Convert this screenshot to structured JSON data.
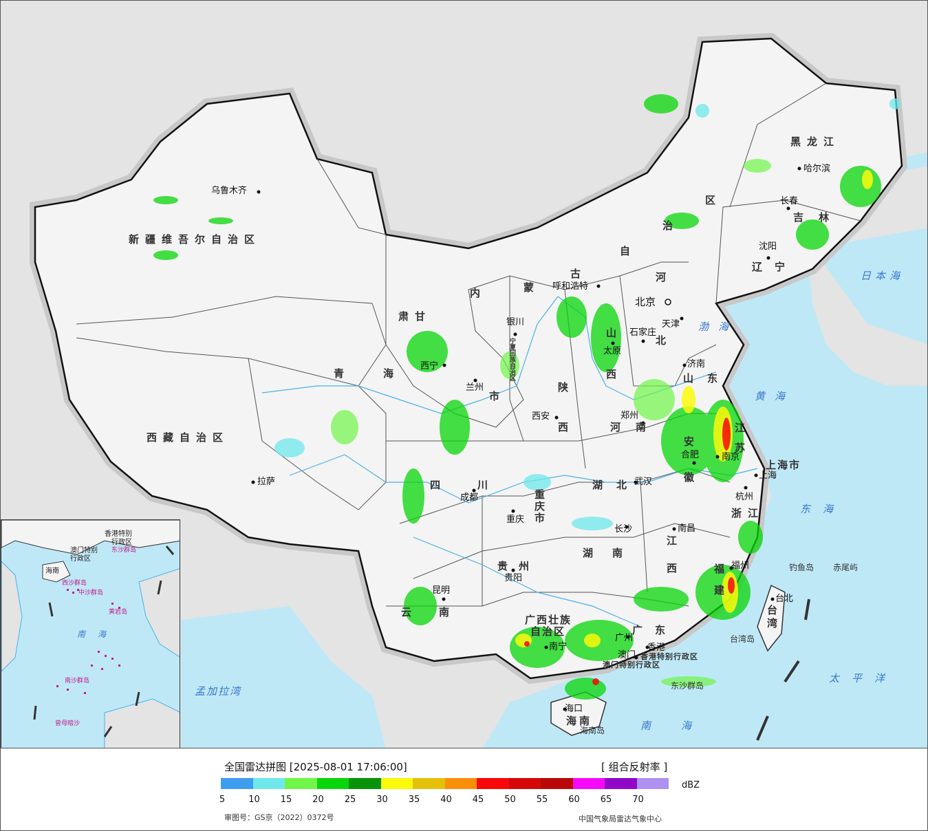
{
  "map": {
    "provinces": [
      {
        "id": "xinjiang",
        "label": "新疆维吾尔自治区"
      },
      {
        "id": "xizang",
        "label": "西藏自治区"
      },
      {
        "id": "qinghai1",
        "label": "青"
      },
      {
        "id": "qinghai2",
        "label": "海"
      },
      {
        "id": "gansu1",
        "label": "甘"
      },
      {
        "id": "gansu2",
        "label": "肃"
      },
      {
        "id": "neimenggu1",
        "label": "内"
      },
      {
        "id": "neimenggu2",
        "label": "蒙"
      },
      {
        "id": "neimenggu3",
        "label": "古"
      },
      {
        "id": "neimenggu4",
        "label": "自"
      },
      {
        "id": "neimenggu5",
        "label": "治"
      },
      {
        "id": "neimenggu6",
        "label": "区"
      },
      {
        "id": "heilongjiang",
        "label": "黑龙江"
      },
      {
        "id": "jilin",
        "label": "吉林"
      },
      {
        "id": "liaoning",
        "label": "辽宁"
      },
      {
        "id": "hebei1",
        "label": "河"
      },
      {
        "id": "hebei2",
        "label": "北"
      },
      {
        "id": "shanxi1",
        "label": "山"
      },
      {
        "id": "shanxi2",
        "label": "西"
      },
      {
        "id": "shaanxi1",
        "label": "陕"
      },
      {
        "id": "shaanxi2",
        "label": "西"
      },
      {
        "id": "ningxia",
        "label": "宁夏回族自治区"
      },
      {
        "id": "henan",
        "label": "河南"
      },
      {
        "id": "shandong",
        "label": "山东"
      },
      {
        "id": "jiangsu",
        "label": "江苏"
      },
      {
        "id": "anhui1",
        "label": "安"
      },
      {
        "id": "anhui2",
        "label": "徽"
      },
      {
        "id": "hubei",
        "label": "湖北"
      },
      {
        "id": "sichuan",
        "label": "四川"
      },
      {
        "id": "chongqing",
        "label": "重庆市"
      },
      {
        "id": "hunan",
        "label": "湖南"
      },
      {
        "id": "jiangxi1",
        "label": "江"
      },
      {
        "id": "jiangxi2",
        "label": "西"
      },
      {
        "id": "zhejiang",
        "label": "浙江"
      },
      {
        "id": "fujian",
        "label": "福建"
      },
      {
        "id": "guizhou",
        "label": "贵州"
      },
      {
        "id": "yunnan",
        "label": "云南"
      },
      {
        "id": "guangxi1",
        "label": "广西壮族"
      },
      {
        "id": "guangxi2",
        "label": "自治区"
      },
      {
        "id": "guangdong",
        "label": "广东"
      },
      {
        "id": "hainan",
        "label": "海南"
      },
      {
        "id": "taiwan",
        "label": "台湾"
      },
      {
        "id": "shanghai",
        "label": "上海市"
      },
      {
        "id": "gansu3",
        "label": "市"
      },
      {
        "id": "hongkong",
        "label": "香港特别行政区"
      },
      {
        "id": "macau",
        "label": "澳门特别行政区"
      }
    ],
    "cities": [
      {
        "id": "urumqi",
        "label": "乌鲁木齐"
      },
      {
        "id": "lhasa",
        "label": "拉萨"
      },
      {
        "id": "xining",
        "label": "西宁"
      },
      {
        "id": "lanzhou",
        "label": "兰州"
      },
      {
        "id": "yinchuan",
        "label": "银川"
      },
      {
        "id": "hohhot",
        "label": "呼和浩特"
      },
      {
        "id": "harbin",
        "label": "哈尔滨"
      },
      {
        "id": "changchun",
        "label": "长春"
      },
      {
        "id": "shenyang",
        "label": "沈阳"
      },
      {
        "id": "beijing",
        "label": "北京"
      },
      {
        "id": "tianjin",
        "label": "天津"
      },
      {
        "id": "shijiazhuang",
        "label": "石家庄"
      },
      {
        "id": "taiyuan",
        "label": "太原"
      },
      {
        "id": "jinan",
        "label": "济南"
      },
      {
        "id": "zhengzhou",
        "label": "郑州"
      },
      {
        "id": "xian",
        "label": "西安"
      },
      {
        "id": "hefei",
        "label": "合肥"
      },
      {
        "id": "nanjing",
        "label": "南京"
      },
      {
        "id": "shanghai_c",
        "label": "上海"
      },
      {
        "id": "hangzhou",
        "label": "杭州"
      },
      {
        "id": "wuhan",
        "label": "武汉"
      },
      {
        "id": "chengdu",
        "label": "成都"
      },
      {
        "id": "chongqing_c",
        "label": "重庆"
      },
      {
        "id": "changsha",
        "label": "长沙"
      },
      {
        "id": "nanchang",
        "label": "南昌"
      },
      {
        "id": "fuzhou",
        "label": "福州"
      },
      {
        "id": "guiyang",
        "label": "贵阳"
      },
      {
        "id": "kunming",
        "label": "昆明"
      },
      {
        "id": "nanning",
        "label": "南宁"
      },
      {
        "id": "guangzhou",
        "label": "广州"
      },
      {
        "id": "xianggang",
        "label": "香港"
      },
      {
        "id": "aomen",
        "label": "澳门"
      },
      {
        "id": "haikou",
        "label": "海口"
      },
      {
        "id": "taibei",
        "label": "台北"
      }
    ],
    "seas": [
      {
        "id": "japan_sea",
        "label": "日本海"
      },
      {
        "id": "bohai",
        "label": "渤海"
      },
      {
        "id": "huanghai",
        "label": "黄海"
      },
      {
        "id": "donghai",
        "label": "东海"
      },
      {
        "id": "taipingyang",
        "label": "太平洋"
      },
      {
        "id": "nanhai",
        "label": "南海"
      },
      {
        "id": "bengal",
        "label": "孟加拉湾"
      }
    ],
    "islands": [
      {
        "id": "diaoyu",
        "label": "钓鱼岛"
      },
      {
        "id": "chiwei",
        "label": "赤尾屿"
      },
      {
        "id": "taiwan_isl",
        "label": "台湾岛"
      },
      {
        "id": "hainan_isl",
        "label": "海南岛"
      },
      {
        "id": "dongsha",
        "label": "东沙群岛"
      }
    ],
    "inset_labels": [
      {
        "id": "inset_hk",
        "label": "香港特别"
      },
      {
        "id": "inset_hk2",
        "label": "行政区"
      },
      {
        "id": "inset_macau",
        "label": "澳门特别"
      },
      {
        "id": "inset_macau2",
        "label": "行政区"
      },
      {
        "id": "inset_dongsha",
        "label": "东沙群岛"
      },
      {
        "id": "inset_xisha",
        "label": "西沙群岛"
      },
      {
        "id": "inset_zhongsha",
        "label": "中沙群岛"
      },
      {
        "id": "inset_huangyan",
        "label": "黄岩岛"
      },
      {
        "id": "inset_nanhai",
        "label": "南海"
      },
      {
        "id": "inset_nansha",
        "label": "南沙群岛"
      },
      {
        "id": "inset_zengmu",
        "label": "曾母暗沙"
      },
      {
        "id": "inset_hainan",
        "label": "海南"
      }
    ]
  },
  "legend": {
    "title": "全国雷达拼图 [2025-08-01 17:06:00]",
    "product": "[ 组合反射率 ]",
    "unit": "dBZ",
    "colors": [
      "#3f9df0",
      "#6fe8ec",
      "#70f548",
      "#08d60a",
      "#089208",
      "#fafa0a",
      "#e4c00a",
      "#fb8e08",
      "#f80808",
      "#d40808",
      "#b80808",
      "#f808f8",
      "#9208c8",
      "#ad90f0"
    ],
    "ticks": [
      "5",
      "10",
      "15",
      "20",
      "25",
      "30",
      "35",
      "40",
      "45",
      "50",
      "55",
      "60",
      "65",
      "70"
    ],
    "approval": "审图号：GS京（2022）0372号",
    "source": "中国气象局雷达气象中心"
  }
}
